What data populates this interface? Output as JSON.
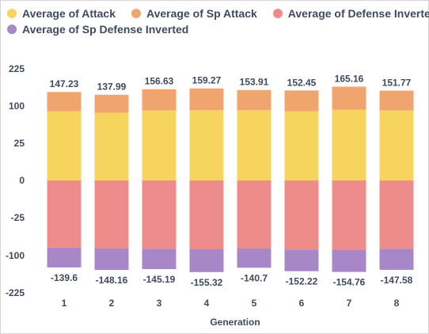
{
  "chart_data": {
    "type": "bar",
    "stacked": true,
    "diverging": true,
    "categories": [
      "1",
      "2",
      "3",
      "4",
      "5",
      "6",
      "7",
      "8"
    ],
    "series": [
      {
        "name": "Average of Attack",
        "color": "#f7d45e",
        "values": [
          89.5,
          86.5,
          91.0,
          91.5,
          91.5,
          89.5,
          92.5,
          91.0
        ]
      },
      {
        "name": "Average of Sp Attack",
        "color": "#f1a56e",
        "values": [
          57.73,
          51.49,
          65.63,
          67.77,
          62.41,
          62.95,
          72.66,
          60.77
        ]
      },
      {
        "name": "Average of Defense Inverted",
        "color": "#ee8c8b",
        "values": [
          -84.0,
          -86.0,
          -86.5,
          -87.5,
          -86.0,
          -88.0,
          -88.5,
          -86.5
        ]
      },
      {
        "name": "Average of Sp Defense Inverted",
        "color": "#a887c8",
        "values": [
          -55.6,
          -62.16,
          -58.69,
          -67.82,
          -54.7,
          -64.22,
          -66.26,
          -61.08
        ]
      }
    ],
    "totals_positive": [
      "147.23",
      "137.99",
      "156.63",
      "159.27",
      "153.91",
      "152.45",
      "165.16",
      "151.77"
    ],
    "totals_negative": [
      "-139.6",
      "-148.16",
      "-145.19",
      "-155.32",
      "-140.7",
      "-152.22",
      "-154.76",
      "-147.58"
    ],
    "y_ticks": [
      225,
      100,
      25,
      0,
      -25,
      -100,
      -225
    ],
    "ylim": [
      -225,
      225
    ],
    "xlabel": "Generation",
    "ylabel": "",
    "grid": false,
    "legend_position": "top"
  }
}
